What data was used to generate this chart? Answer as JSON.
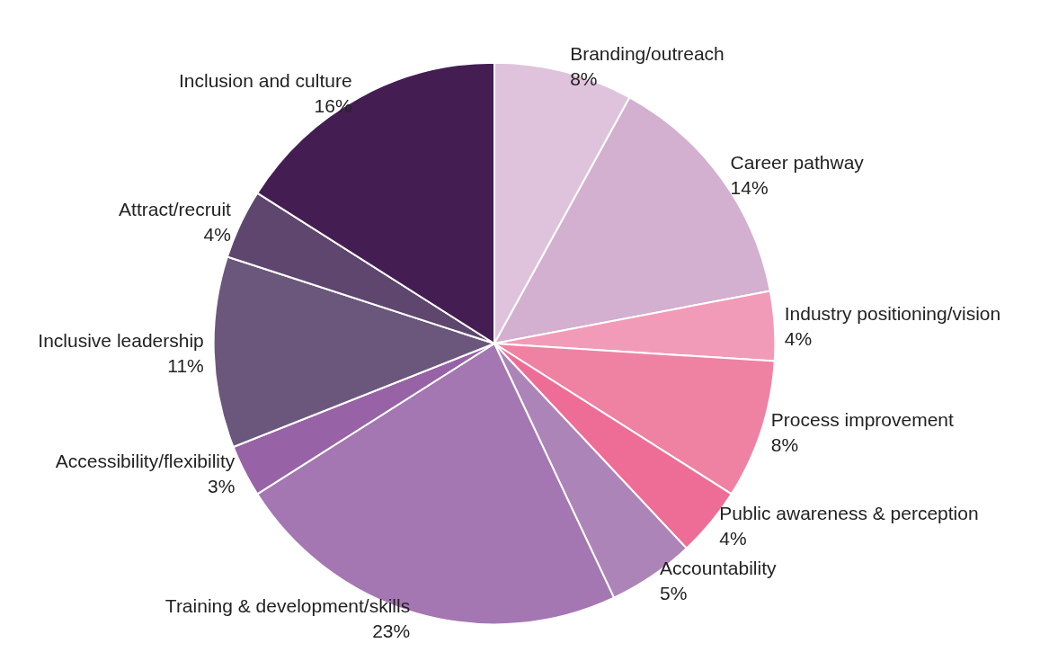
{
  "chart_data": {
    "type": "pie",
    "categories": [
      "Branding/outreach",
      "Career pathway",
      "Industry positioning/vision",
      "Process improvement",
      "Public awareness & perception",
      "Accountability",
      "Training & development/skills",
      "Accessibility/flexibility",
      "Inclusive leadership",
      "Attract/recruit",
      "Inclusion and culture"
    ],
    "values": [
      8,
      14,
      4,
      8,
      4,
      5,
      23,
      3,
      11,
      4,
      16
    ],
    "value_labels": [
      "8%",
      "14%",
      "4%",
      "8%",
      "4%",
      "5%",
      "23%",
      "3%",
      "11%",
      "4%",
      "16%"
    ],
    "colors": [
      "#dfc3dc",
      "#d3afd0",
      "#f29bb8",
      "#ef82a3",
      "#ee6d96",
      "#ad84b8",
      "#a477b2",
      "#9762a6",
      "#6b577c",
      "#5e466f",
      "#441e52"
    ],
    "legend": false
  }
}
